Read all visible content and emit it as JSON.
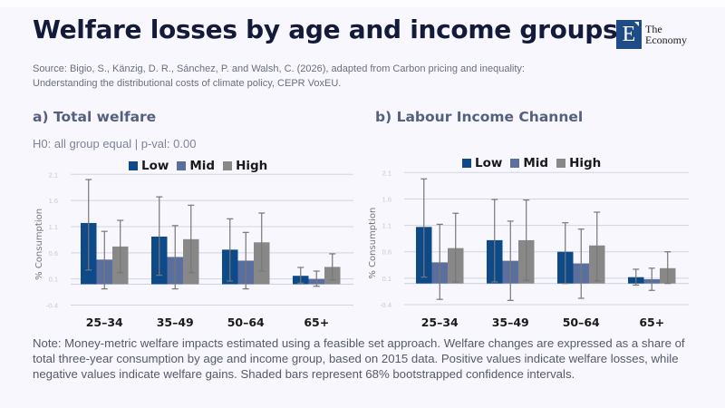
{
  "header": {
    "title": "Welfare losses by age and income groups",
    "logo_letter": "E",
    "logo_line1": "The",
    "logo_line2": "Economy",
    "source_line1": "Source: Bigio, S., Känzig, D. R., Sánchez, P. and Walsh, C. (2026), adapted from Carbon pricing and inequality:",
    "source_line2": "Understanding the distributional costs of climate policy, CEPR VoxEU."
  },
  "colors": {
    "low": "#0d4a87",
    "mid": "#5b6f9e",
    "high": "#888888",
    "grid": "#cfd5e2",
    "errorbar": "#777777"
  },
  "legend": [
    "Low",
    "Mid",
    "High"
  ],
  "note": "Note: Money-metric welfare impacts estimated using a feasible set approach. Welfare changes are expressed as a share of total three-year consumption by age and income group, based on 2015 data. Positive values indicate welfare losses, while negative values indicate welfare gains. Shaded bars represent 68% bootstrapped confidence intervals.",
  "chart_data": [
    {
      "type": "bar",
      "title": "a) Total welfare",
      "subtitle": "H0: all group equal | p-val: 0.00",
      "xlabel": "",
      "ylabel": "% Consumption",
      "ylim": [
        -0.4,
        2.1
      ],
      "yticks": [
        "2.1",
        "1.6",
        "1.1",
        "0.6",
        "0.1",
        "-0.4"
      ],
      "grid": true,
      "legend_position": "top-center",
      "categories": [
        "25–34",
        "35–49",
        "50–64",
        "65+"
      ],
      "series": [
        {
          "name": "Low",
          "values": [
            1.17,
            0.91,
            0.66,
            0.16
          ],
          "err_low": [
            0.27,
            0.17,
            0.06,
            0.02
          ],
          "err_high": [
            2.0,
            1.67,
            1.25,
            0.32
          ]
        },
        {
          "name": "Mid",
          "values": [
            0.47,
            0.52,
            0.45,
            0.1
          ],
          "err_low": [
            -0.09,
            -0.09,
            -0.09,
            -0.04
          ],
          "err_high": [
            1.01,
            1.12,
            0.99,
            0.25
          ]
        },
        {
          "name": "High",
          "values": [
            0.72,
            0.86,
            0.8,
            0.33
          ],
          "err_low": [
            0.22,
            0.22,
            0.25,
            0.08
          ],
          "err_high": [
            1.22,
            1.51,
            1.36,
            0.58
          ]
        }
      ]
    },
    {
      "type": "bar",
      "title": "b) Labour Income Channel",
      "subtitle": "",
      "xlabel": "",
      "ylabel": "% Consumption",
      "ylim": [
        -0.4,
        2.1
      ],
      "yticks": [
        "2.1",
        "1.6",
        "1.1",
        "0.6",
        "0.1",
        "-0.4"
      ],
      "grid": true,
      "legend_position": "top-center",
      "categories": [
        "25–34",
        "35–49",
        "50–64",
        "65+"
      ],
      "series": [
        {
          "name": "Low",
          "values": [
            1.07,
            0.82,
            0.6,
            0.12
          ],
          "err_low": [
            0.12,
            0.03,
            0.0,
            -0.03
          ],
          "err_high": [
            1.98,
            1.59,
            1.15,
            0.27
          ]
        },
        {
          "name": "Mid",
          "values": [
            0.4,
            0.43,
            0.38,
            0.08
          ],
          "err_low": [
            -0.3,
            -0.32,
            -0.28,
            -0.13
          ],
          "err_high": [
            1.12,
            1.18,
            1.03,
            0.29
          ]
        },
        {
          "name": "High",
          "values": [
            0.67,
            0.82,
            0.72,
            0.29
          ],
          "err_low": [
            0.03,
            0.06,
            0.05,
            0.0
          ],
          "err_high": [
            1.33,
            1.58,
            1.35,
            0.6
          ]
        }
      ]
    }
  ]
}
